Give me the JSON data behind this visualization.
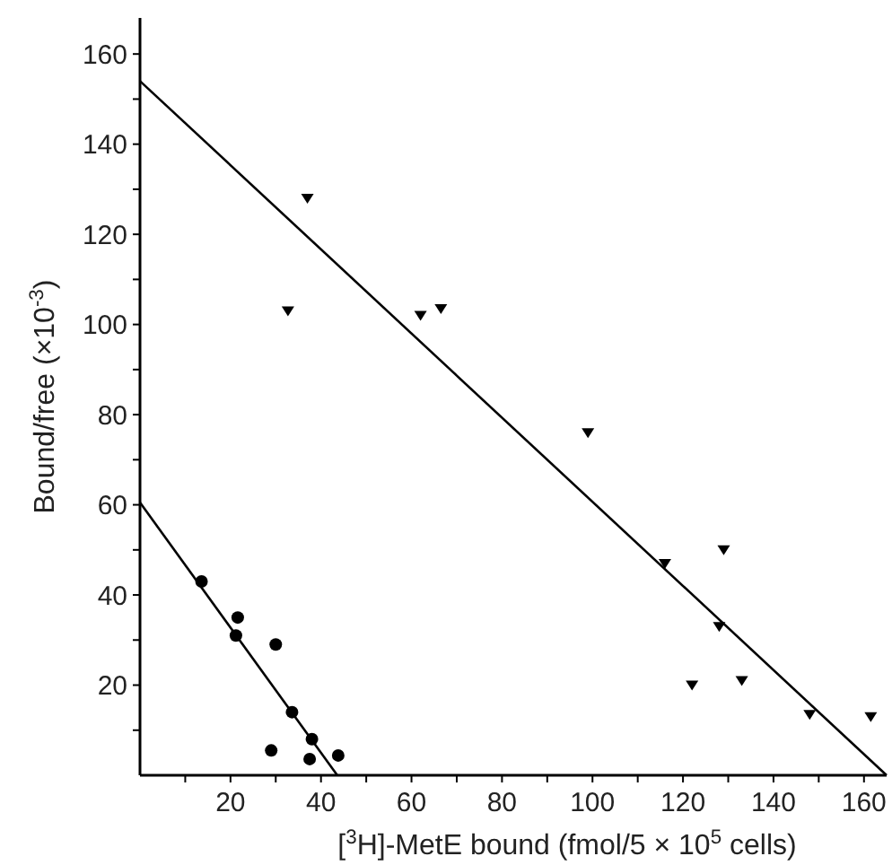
{
  "chart_data": {
    "type": "scatter",
    "xlabel": "[$^{3}$H]-MetE bound (fmol/5 × 10$^{5}$ cells)",
    "ylabel": "Bound/free (×10$^{-3}$)",
    "xlim": [
      0,
      165
    ],
    "ylim": [
      0,
      168
    ],
    "xticks": [
      {
        "value": 10,
        "label": null
      },
      20,
      {
        "value": 30,
        "label": null
      },
      40,
      {
        "value": 50,
        "label": null
      },
      60,
      {
        "value": 70,
        "label": null
      },
      80,
      {
        "value": 90,
        "label": null
      },
      100,
      {
        "value": 110,
        "label": null
      },
      120,
      {
        "value": 130,
        "label": null
      },
      140,
      {
        "value": 150,
        "label": null
      },
      160
    ],
    "yticks": [
      {
        "value": 10,
        "label": null
      },
      20,
      {
        "value": 30,
        "label": null
      },
      40,
      {
        "value": 50,
        "label": null
      },
      60,
      {
        "value": 70,
        "label": null
      },
      80,
      {
        "value": 90,
        "label": null
      },
      100,
      {
        "value": 110,
        "label": null
      },
      120,
      {
        "value": 130,
        "label": null
      },
      140,
      {
        "value": 150,
        "label": null
      },
      160
    ],
    "grid": false,
    "series": [
      {
        "marker": "circle",
        "color": "#000000",
        "x": [
          13.6,
          21.6,
          21.2,
          30,
          33.6,
          29,
          38,
          37.5,
          43.8
        ],
        "values": [
          43,
          35,
          31,
          29,
          14,
          5.5,
          8,
          3.6,
          4.4
        ]
      },
      {
        "marker": "triangle",
        "color": "#000000",
        "x": [
          37,
          32.7,
          62,
          66.5,
          99,
          116,
          129,
          128,
          122,
          133,
          148,
          161.5
        ],
        "values": [
          128,
          103,
          102,
          103.5,
          76,
          47,
          50,
          33,
          20,
          21,
          13.5,
          13
        ]
      },
      {
        "type": "line",
        "marker": "none",
        "line_style": "solid",
        "color": "#000000",
        "x": [
          0,
          43.6
        ],
        "values": [
          60.5,
          0
        ]
      },
      {
        "type": "line",
        "marker": "none",
        "line_style": "solid",
        "color": "#000000",
        "x": [
          0,
          165
        ],
        "values": [
          154,
          0
        ]
      }
    ]
  }
}
